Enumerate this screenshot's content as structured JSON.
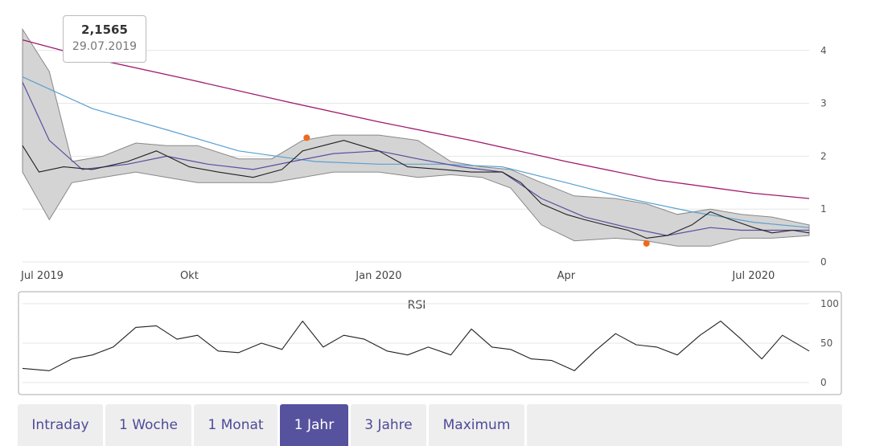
{
  "tooltip": {
    "value": "2,1565",
    "date": "29.07.2019"
  },
  "tabs": [
    {
      "label": "Intraday",
      "active": false
    },
    {
      "label": "1 Woche",
      "active": false
    },
    {
      "label": "1 Monat",
      "active": false
    },
    {
      "label": "1 Jahr",
      "active": true
    },
    {
      "label": "3 Jahre",
      "active": false
    },
    {
      "label": "Maximum",
      "active": false
    }
  ],
  "colors": {
    "accent": "#56529e",
    "price": "#222222",
    "band": "#d4d4d4",
    "sma_long": "#a0196e",
    "sma_mid": "#5aa0d0",
    "sma_short": "#5a4fa0",
    "marker": "#ee6a1c"
  },
  "chart_data": [
    {
      "type": "line",
      "xaxis_type": "date",
      "x_ticks": [
        "Jul 2019",
        "Okt",
        "Jan 2020",
        "Apr",
        "Jul 2020"
      ],
      "y_ticks": [
        "0",
        "1",
        "2",
        "3",
        "4"
      ],
      "ylim": [
        0,
        4.2
      ],
      "series": [
        {
          "kind": "price",
          "x": [
            "2019-07-12",
            "2019-07-20",
            "2019-08-01",
            "2019-08-15",
            "2019-09-01",
            "2019-09-15",
            "2019-10-01",
            "2019-10-15",
            "2019-11-01",
            "2019-11-15",
            "2019-11-25",
            "2019-12-05",
            "2019-12-15",
            "2020-01-01",
            "2020-01-15",
            "2020-02-01",
            "2020-02-15",
            "2020-03-01",
            "2020-03-10",
            "2020-03-20",
            "2020-04-01",
            "2020-04-10",
            "2020-04-20",
            "2020-05-01",
            "2020-05-10",
            "2020-05-20",
            "2020-06-01",
            "2020-06-10",
            "2020-06-20",
            "2020-07-01",
            "2020-07-10",
            "2020-07-20",
            "2020-07-28"
          ],
          "y": [
            2.2,
            1.7,
            1.8,
            1.75,
            1.9,
            2.1,
            1.8,
            1.7,
            1.6,
            1.75,
            2.1,
            2.2,
            2.3,
            2.1,
            1.8,
            1.75,
            1.7,
            1.7,
            1.5,
            1.1,
            0.9,
            0.8,
            0.7,
            0.6,
            0.45,
            0.5,
            0.7,
            0.95,
            0.8,
            0.65,
            0.55,
            0.6,
            0.55
          ]
        },
        {
          "kind": "bollinger_band",
          "x": [
            "2019-07-12",
            "2019-07-25",
            "2019-08-05",
            "2019-08-20",
            "2019-09-05",
            "2019-09-20",
            "2019-10-05",
            "2019-10-25",
            "2019-11-10",
            "2019-11-25",
            "2019-12-10",
            "2020-01-01",
            "2020-01-20",
            "2020-02-05",
            "2020-02-20",
            "2020-03-05",
            "2020-03-20",
            "2020-04-05",
            "2020-04-25",
            "2020-05-10",
            "2020-05-25",
            "2020-06-10",
            "2020-06-25",
            "2020-07-10",
            "2020-07-28"
          ],
          "upper": [
            4.4,
            3.6,
            1.9,
            2.0,
            2.25,
            2.2,
            2.2,
            1.95,
            1.95,
            2.3,
            2.4,
            2.4,
            2.3,
            1.9,
            1.8,
            1.75,
            1.5,
            1.25,
            1.2,
            1.1,
            0.9,
            1.0,
            0.9,
            0.85,
            0.7
          ],
          "lower": [
            1.7,
            0.8,
            1.5,
            1.6,
            1.7,
            1.6,
            1.5,
            1.5,
            1.5,
            1.6,
            1.7,
            1.7,
            1.6,
            1.65,
            1.6,
            1.4,
            0.7,
            0.4,
            0.45,
            0.4,
            0.3,
            0.3,
            0.45,
            0.45,
            0.5
          ]
        },
        {
          "kind": "moving_average_short",
          "x": [
            "2019-07-12",
            "2019-07-25",
            "2019-08-10",
            "2019-09-01",
            "2019-09-20",
            "2019-10-10",
            "2019-11-01",
            "2019-11-20",
            "2019-12-10",
            "2020-01-01",
            "2020-01-20",
            "2020-02-10",
            "2020-03-01",
            "2020-03-20",
            "2020-04-10",
            "2020-05-01",
            "2020-05-20",
            "2020-06-10",
            "2020-06-25",
            "2020-07-10",
            "2020-07-28"
          ],
          "y": [
            3.4,
            2.3,
            1.75,
            1.85,
            2.0,
            1.85,
            1.75,
            1.9,
            2.05,
            2.1,
            1.95,
            1.8,
            1.7,
            1.2,
            0.85,
            0.65,
            0.5,
            0.65,
            0.6,
            0.6,
            0.6
          ]
        },
        {
          "kind": "moving_average_mid",
          "x": [
            "2019-07-12",
            "2019-08-15",
            "2019-09-20",
            "2019-10-25",
            "2019-12-01",
            "2020-01-01",
            "2020-02-01",
            "2020-03-01",
            "2020-04-01",
            "2020-05-01",
            "2020-06-01",
            "2020-07-01",
            "2020-07-28"
          ],
          "y": [
            3.5,
            2.9,
            2.5,
            2.1,
            1.9,
            1.85,
            1.85,
            1.8,
            1.5,
            1.2,
            0.95,
            0.75,
            0.65
          ]
        },
        {
          "kind": "moving_average_long",
          "x": [
            "2019-07-12",
            "2019-08-15",
            "2019-10-01",
            "2019-11-15",
            "2020-01-01",
            "2020-02-15",
            "2020-04-01",
            "2020-05-15",
            "2020-07-01",
            "2020-07-28"
          ],
          "y": [
            4.2,
            3.85,
            3.45,
            3.05,
            2.65,
            2.3,
            1.9,
            1.55,
            1.3,
            1.2
          ]
        }
      ],
      "markers": [
        {
          "kind": "max",
          "x": "2019-11-27",
          "y": 2.35
        },
        {
          "kind": "min",
          "x": "2020-05-10",
          "y": 0.35
        }
      ]
    },
    {
      "type": "line",
      "title": "RSI",
      "y_ticks": [
        "0",
        "50",
        "100"
      ],
      "ylim": [
        0,
        100
      ],
      "series": [
        {
          "kind": "rsi",
          "x": [
            "2019-07-12",
            "2019-07-25",
            "2019-08-05",
            "2019-08-15",
            "2019-08-25",
            "2019-09-05",
            "2019-09-15",
            "2019-09-25",
            "2019-10-05",
            "2019-10-15",
            "2019-10-25",
            "2019-11-05",
            "2019-11-15",
            "2019-11-25",
            "2019-12-05",
            "2019-12-15",
            "2019-12-25",
            "2020-01-05",
            "2020-01-15",
            "2020-01-25",
            "2020-02-05",
            "2020-02-15",
            "2020-02-25",
            "2020-03-05",
            "2020-03-15",
            "2020-03-25",
            "2020-04-05",
            "2020-04-15",
            "2020-04-25",
            "2020-05-05",
            "2020-05-15",
            "2020-05-25",
            "2020-06-05",
            "2020-06-15",
            "2020-06-25",
            "2020-07-05",
            "2020-07-15",
            "2020-07-28"
          ],
          "y": [
            18,
            15,
            30,
            35,
            45,
            70,
            72,
            55,
            60,
            40,
            38,
            50,
            42,
            78,
            45,
            60,
            55,
            40,
            35,
            45,
            35,
            68,
            45,
            42,
            30,
            28,
            15,
            40,
            62,
            48,
            45,
            35,
            60,
            78,
            55,
            30,
            60,
            40
          ]
        }
      ]
    }
  ]
}
